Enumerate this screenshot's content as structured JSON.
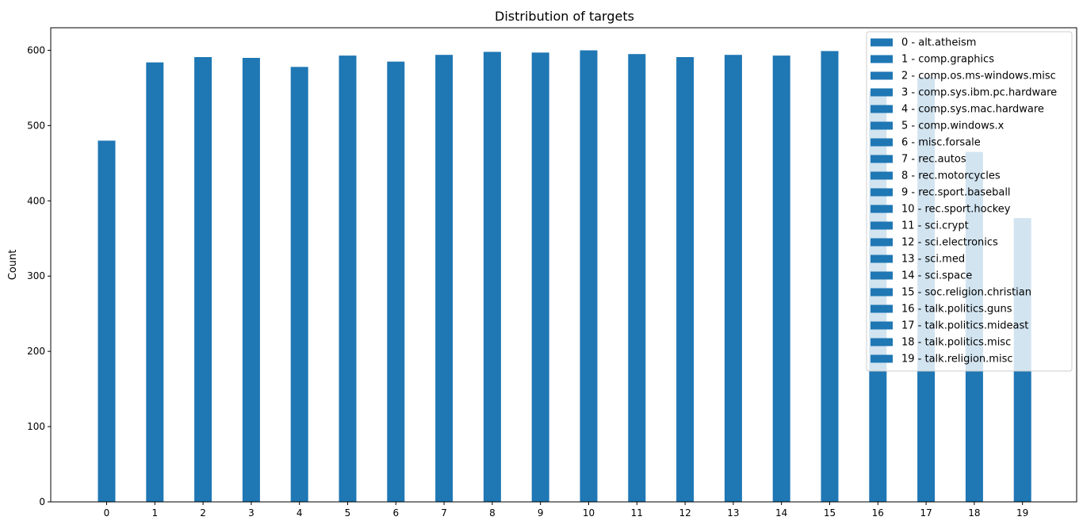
{
  "chart_data": {
    "type": "bar",
    "title": "Distribution of targets",
    "xlabel": "",
    "ylabel": "Count",
    "categories": [
      "0",
      "1",
      "2",
      "3",
      "4",
      "5",
      "6",
      "7",
      "8",
      "9",
      "10",
      "11",
      "12",
      "13",
      "14",
      "15",
      "16",
      "17",
      "18",
      "19"
    ],
    "values": [
      480,
      584,
      591,
      590,
      578,
      593,
      585,
      594,
      598,
      597,
      600,
      595,
      591,
      594,
      593,
      599,
      546,
      564,
      465,
      377
    ],
    "ylim": [
      0,
      630
    ],
    "yticks": [
      0,
      100,
      200,
      300,
      400,
      500,
      600
    ],
    "legend": {
      "placement": "top-right",
      "entries": [
        "0 - alt.atheism",
        "1 - comp.graphics",
        "2 - comp.os.ms-windows.misc",
        "3 - comp.sys.ibm.pc.hardware",
        "4 - comp.sys.mac.hardware",
        "5 - comp.windows.x",
        "6 - misc.forsale",
        "7 - rec.autos",
        "8 - rec.motorcycles",
        "9 - rec.sport.baseball",
        "10 - rec.sport.hockey",
        "11 - sci.crypt",
        "12 - sci.electronics",
        "13 - sci.med",
        "14 - sci.space",
        "15 - soc.religion.christian",
        "16 - talk.politics.guns",
        "17 - talk.politics.mideast",
        "18 - talk.politics.misc",
        "19 - talk.religion.misc"
      ]
    },
    "bar_color": "#1f77b4",
    "grid": false
  }
}
